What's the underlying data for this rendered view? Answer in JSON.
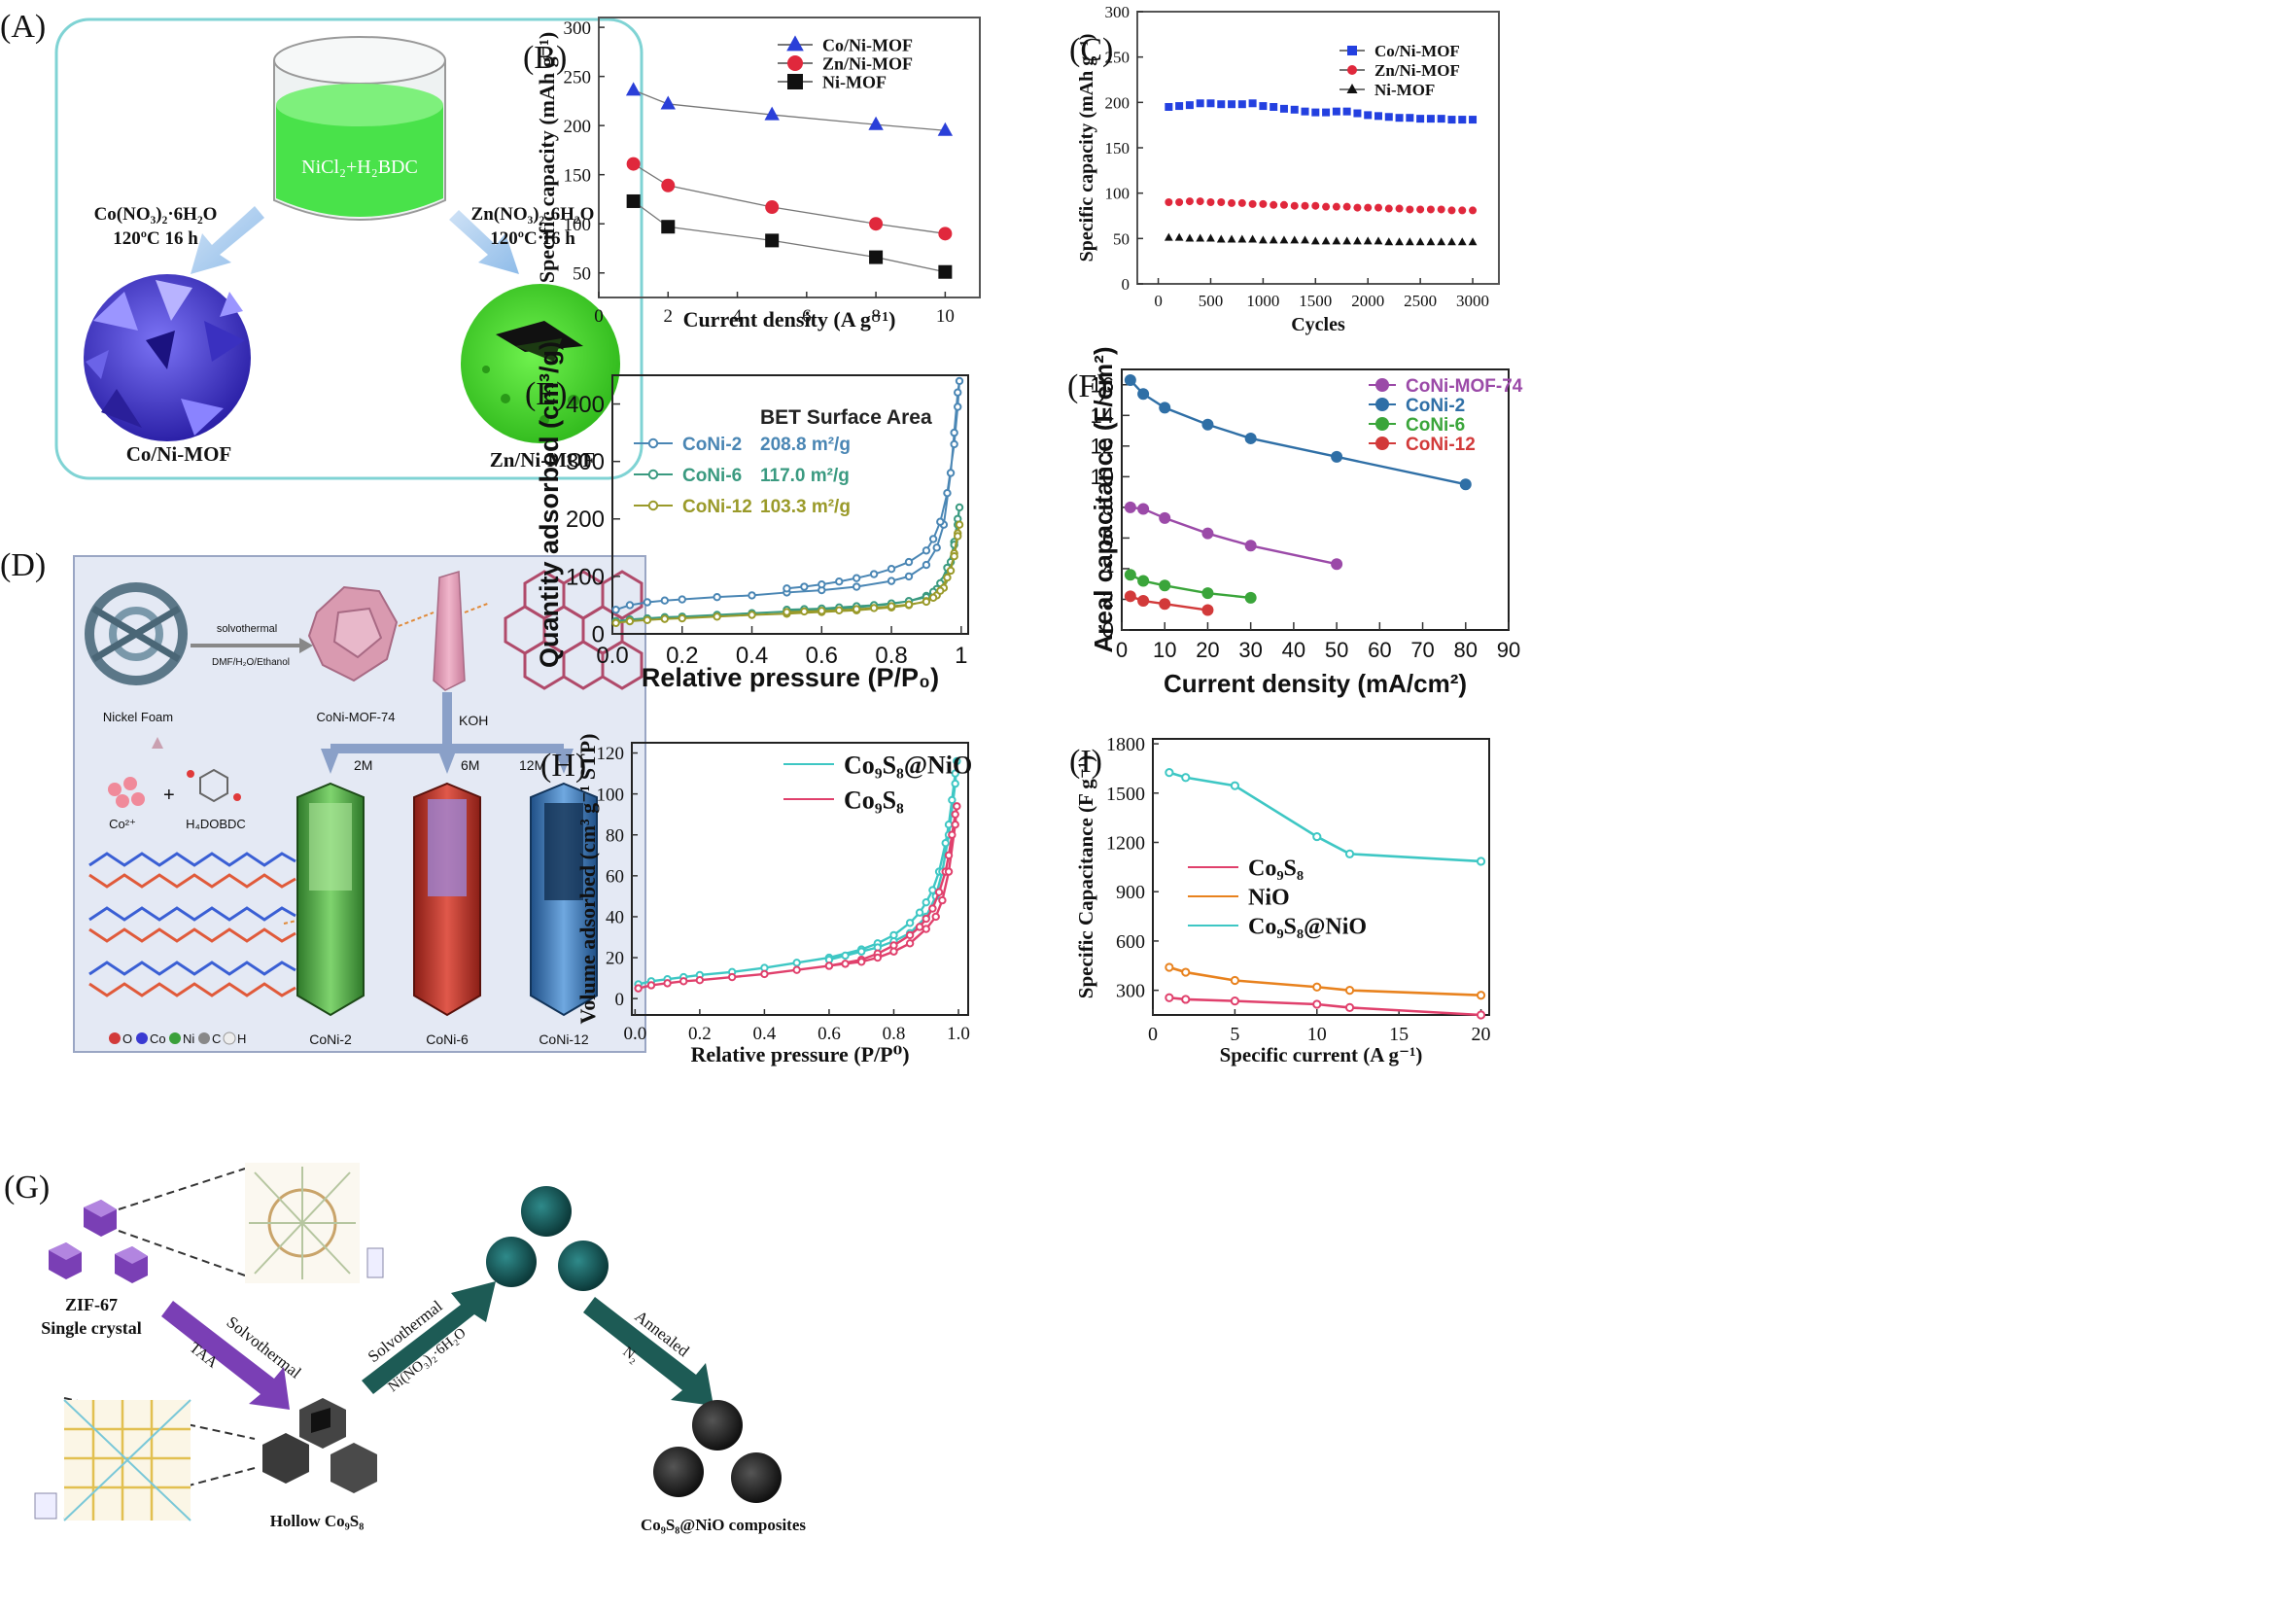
{
  "panels": {
    "A": {
      "label": "(A)",
      "beaker": "NiCl₂+H₂BDC",
      "left_reagent": "Co(NO₃)₂·6H₂O",
      "left_cond": "120ºC 16 h",
      "right_reagent": "Zn(NO₃)₂·6H₂O",
      "right_cond": "120ºC 16 h",
      "left_product": "Co/Ni-MOF",
      "right_product": "Zn/Ni-MOF",
      "colors": {
        "beaker": "#49e24a",
        "left_crystal": "#5f56e8",
        "right_crystal": "#55ef33",
        "frame": "#7fd3d4"
      }
    },
    "D": {
      "label": "(D)",
      "step1": "solvothermal",
      "step1_detail": "DMF/H₂O/Ethanol",
      "nickel_foam": "Nickel Foam",
      "mof": "CoNi-MOF-74",
      "koh": "KOH",
      "conc1": "2M",
      "conc2": "6M",
      "conc3": "12M",
      "co_ion": "Co²⁺",
      "ligand": "H₄DOBDC",
      "products": [
        "CoNi-2",
        "CoNi-6",
        "CoNi-12"
      ],
      "atom_legend": [
        "O",
        "Co",
        "Ni",
        "C",
        "H"
      ],
      "colors": {
        "bg": "#e4e9f4",
        "mof": "#d99ab0",
        "rod1": "#5db84a",
        "rod2": "#d94a3c",
        "rod3": "#4a8fd4"
      }
    },
    "G": {
      "label": "(G)",
      "zif": "ZIF-67",
      "zif_sub": "Single crystal",
      "arrow1": "Solvothermal",
      "arrow1_sub": "TAA",
      "hollow": "Hollow Co₉S₈",
      "arrow2": "Solvothermal",
      "arrow2_sub": "Ni(NO₃)₂·6H₂O",
      "arrow3": "Annealed",
      "arrow3_sub": "N₂",
      "composite": "Co₉S₈@NiO composites",
      "colors": {
        "zif": "#7a3fb5",
        "teal": "#1d6b6b",
        "dark": "#3a3a3a"
      }
    }
  },
  "chart_data": [
    {
      "id": "B",
      "label": "(B)",
      "type": "line",
      "xlabel": "Current density  (A g⁻¹)",
      "ylabel": "Specific capacity (mAh g⁻¹)",
      "xlim": [
        0,
        11
      ],
      "ylim": [
        25,
        310
      ],
      "xticks": [
        0,
        2,
        4,
        6,
        8,
        10
      ],
      "yticks": [
        50,
        100,
        150,
        200,
        250,
        300
      ],
      "series": [
        {
          "name": "Co/Ni-MOF",
          "color": "#2a3fd8",
          "marker": "triangle",
          "x": [
            1,
            2,
            5,
            8,
            10
          ],
          "y": [
            236,
            222,
            211,
            201,
            195
          ]
        },
        {
          "name": "Zn/Ni-MOF",
          "color": "#e0283c",
          "marker": "circle",
          "x": [
            1,
            2,
            5,
            8,
            10
          ],
          "y": [
            161,
            139,
            117,
            100,
            90
          ]
        },
        {
          "name": "Ni-MOF",
          "color": "#111111",
          "marker": "square",
          "x": [
            1,
            2,
            5,
            8,
            10
          ],
          "y": [
            123,
            97,
            83,
            66,
            51
          ]
        }
      ]
    },
    {
      "id": "C",
      "label": "(C)",
      "type": "scatter",
      "xlabel": "Cycles",
      "ylabel": "Specific capacity (mAh g⁻¹)",
      "xlim": [
        -200,
        3250
      ],
      "ylim": [
        0,
        300
      ],
      "xticks": [
        0,
        500,
        1000,
        1500,
        2000,
        2500,
        3000
      ],
      "yticks": [
        0,
        50,
        100,
        150,
        200,
        250,
        300
      ],
      "series": [
        {
          "name": "Co/Ni-MOF",
          "color": "#2340e0",
          "marker": "square",
          "x": [
            100,
            200,
            300,
            400,
            500,
            600,
            700,
            800,
            900,
            1000,
            1100,
            1200,
            1300,
            1400,
            1500,
            1600,
            1700,
            1800,
            1900,
            2000,
            2100,
            2200,
            2300,
            2400,
            2500,
            2600,
            2700,
            2800,
            2900,
            3000
          ],
          "y": [
            195,
            196,
            197,
            199,
            199,
            198,
            198,
            198,
            199,
            196,
            195,
            193,
            192,
            190,
            189,
            189,
            190,
            190,
            188,
            186,
            185,
            184,
            183,
            183,
            182,
            182,
            182,
            181,
            181,
            181
          ]
        },
        {
          "name": "Zn/Ni-MOF",
          "color": "#e0283c",
          "marker": "circle",
          "x": [
            100,
            200,
            300,
            400,
            500,
            600,
            700,
            800,
            900,
            1000,
            1100,
            1200,
            1300,
            1400,
            1500,
            1600,
            1700,
            1800,
            1900,
            2000,
            2100,
            2200,
            2300,
            2400,
            2500,
            2600,
            2700,
            2800,
            2900,
            3000
          ],
          "y": [
            90,
            90,
            91,
            91,
            90,
            90,
            89,
            89,
            88,
            88,
            87,
            87,
            86,
            86,
            86,
            85,
            85,
            85,
            84,
            84,
            84,
            83,
            83,
            82,
            82,
            82,
            82,
            81,
            81,
            81
          ]
        },
        {
          "name": "Ni-MOF",
          "color": "#111111",
          "marker": "triangle",
          "x": [
            100,
            200,
            300,
            400,
            500,
            600,
            700,
            800,
            900,
            1000,
            1100,
            1200,
            1300,
            1400,
            1500,
            1600,
            1700,
            1800,
            1900,
            2000,
            2100,
            2200,
            2300,
            2400,
            2500,
            2600,
            2700,
            2800,
            2900,
            3000
          ],
          "y": [
            51,
            51,
            50,
            50,
            50,
            49,
            49,
            49,
            49,
            48,
            48,
            48,
            48,
            48,
            47,
            47,
            47,
            47,
            47,
            47,
            47,
            46,
            46,
            46,
            46,
            46,
            46,
            46,
            46,
            46
          ]
        }
      ]
    },
    {
      "id": "E",
      "label": "(E)",
      "type": "line",
      "xlabel": "Relative pressure (P/P₀)",
      "ylabel": "Quantity adsorbed (cm³/g)",
      "xlim": [
        0,
        1.02
      ],
      "ylim": [
        0,
        450
      ],
      "xticks": [
        0.0,
        0.2,
        0.4,
        0.6,
        0.8,
        1
      ],
      "yticks": [
        0,
        100,
        200,
        300,
        400
      ],
      "legend_title": "BET Surface Area",
      "series": [
        {
          "name": "CoNi-2",
          "area": "208.8 m²/g",
          "color": "#4a86b4",
          "x": [
            0.01,
            0.05,
            0.1,
            0.15,
            0.2,
            0.3,
            0.4,
            0.5,
            0.6,
            0.7,
            0.8,
            0.85,
            0.9,
            0.93,
            0.95,
            0.97,
            0.98,
            0.99,
            0.995,
            0.99,
            0.98,
            0.96,
            0.94,
            0.92,
            0.9,
            0.85,
            0.8,
            0.75,
            0.7,
            0.65,
            0.6,
            0.55,
            0.5
          ],
          "y": [
            42,
            50,
            55,
            58,
            60,
            64,
            67,
            72,
            76,
            82,
            92,
            100,
            120,
            150,
            190,
            280,
            350,
            420,
            440,
            395,
            330,
            245,
            195,
            165,
            145,
            125,
            113,
            104,
            97,
            91,
            86,
            82,
            79
          ]
        },
        {
          "name": "CoNi-6",
          "area": "117.0 m²/g",
          "color": "#3a9a80",
          "x": [
            0.01,
            0.05,
            0.1,
            0.15,
            0.2,
            0.3,
            0.4,
            0.5,
            0.6,
            0.7,
            0.8,
            0.85,
            0.9,
            0.93,
            0.95,
            0.97,
            0.98,
            0.99,
            0.995,
            0.99,
            0.98,
            0.96,
            0.94,
            0.92,
            0.9,
            0.85,
            0.8,
            0.75,
            0.7,
            0.65,
            0.6,
            0.55,
            0.5
          ],
          "y": [
            22,
            25,
            27,
            29,
            30,
            33,
            36,
            39,
            42,
            46,
            52,
            57,
            66,
            78,
            92,
            125,
            160,
            200,
            220,
            190,
            155,
            115,
            88,
            73,
            64,
            57,
            53,
            50,
            48,
            46,
            44,
            43,
            42
          ]
        },
        {
          "name": "CoNi-12",
          "area": "103.3 m²/g",
          "color": "#9a9a2a",
          "x": [
            0.01,
            0.05,
            0.1,
            0.15,
            0.2,
            0.3,
            0.4,
            0.5,
            0.6,
            0.7,
            0.8,
            0.85,
            0.9,
            0.93,
            0.95,
            0.97,
            0.98,
            0.99,
            0.995,
            0.99,
            0.98,
            0.96,
            0.94,
            0.92,
            0.9,
            0.85,
            0.8,
            0.75,
            0.7,
            0.65,
            0.6,
            0.55,
            0.5
          ],
          "y": [
            19,
            22,
            24,
            26,
            27,
            30,
            33,
            35,
            38,
            41,
            46,
            50,
            57,
            67,
            80,
            110,
            140,
            175,
            190,
            170,
            135,
            98,
            75,
            63,
            56,
            51,
            48,
            45,
            43,
            41,
            40,
            39,
            38
          ]
        }
      ]
    },
    {
      "id": "F",
      "label": "(F)",
      "type": "line",
      "xlabel": "Current density (mA/cm²)",
      "ylabel": "Areal capacitance (F/cm²)",
      "xlim": [
        0,
        90
      ],
      "ylim": [
        0,
        17
      ],
      "xticks": [
        0,
        10,
        20,
        30,
        40,
        50,
        60,
        70,
        80,
        90
      ],
      "yticks": [
        0,
        2,
        4,
        6,
        8,
        10,
        12,
        14,
        16
      ],
      "series": [
        {
          "name": "CoNi-MOF-74",
          "color": "#9b4aa8",
          "x": [
            2,
            5,
            10,
            20,
            30,
            50
          ],
          "y": [
            8.0,
            7.9,
            7.3,
            6.3,
            5.5,
            4.3
          ]
        },
        {
          "name": "CoNi-2",
          "color": "#2f6fa6",
          "x": [
            2,
            5,
            10,
            20,
            30,
            50,
            80
          ],
          "y": [
            16.3,
            15.4,
            14.5,
            13.4,
            12.5,
            11.3,
            9.5
          ]
        },
        {
          "name": "CoNi-6",
          "color": "#3aa53a",
          "x": [
            2,
            5,
            10,
            20,
            30
          ],
          "y": [
            3.6,
            3.2,
            2.9,
            2.4,
            2.1
          ]
        },
        {
          "name": "CoNi-12",
          "color": "#d23a3a",
          "x": [
            2,
            5,
            10,
            20
          ],
          "y": [
            2.2,
            1.9,
            1.7,
            1.3
          ]
        }
      ]
    },
    {
      "id": "H",
      "label": "(H)",
      "type": "line",
      "xlabel": "Relative pressure (P/P⁰)",
      "ylabel": "Volume adsorbed (cm³ g⁻¹ STP)",
      "xlim": [
        -0.01,
        1.03
      ],
      "ylim": [
        -8,
        125
      ],
      "xticks": [
        0.0,
        0.2,
        0.4,
        0.6,
        0.8,
        1.0
      ],
      "yticks": [
        0,
        20,
        40,
        60,
        80,
        100,
        120
      ],
      "series": [
        {
          "name": "Co₉S₈@NiO",
          "color": "#3ec7c4",
          "x": [
            0.01,
            0.05,
            0.1,
            0.15,
            0.2,
            0.3,
            0.4,
            0.5,
            0.6,
            0.7,
            0.75,
            0.8,
            0.85,
            0.88,
            0.9,
            0.92,
            0.94,
            0.96,
            0.97,
            0.98,
            0.99,
            0.995,
            0.99,
            0.97,
            0.95,
            0.93,
            0.9,
            0.85,
            0.8,
            0.75,
            0.7,
            0.65,
            0.6
          ],
          "y": [
            7,
            8.5,
            9.5,
            10.5,
            11.5,
            13,
            15,
            17.5,
            20,
            24,
            27,
            31,
            37,
            42,
            47,
            53,
            62,
            76,
            85,
            97,
            110,
            116,
            105,
            80,
            62,
            50,
            40,
            32,
            28,
            25,
            23,
            21,
            19
          ]
        },
        {
          "name": "Co₉S₈",
          "color": "#e0406c",
          "x": [
            0.01,
            0.05,
            0.1,
            0.15,
            0.2,
            0.3,
            0.4,
            0.5,
            0.6,
            0.7,
            0.75,
            0.8,
            0.85,
            0.88,
            0.9,
            0.92,
            0.94,
            0.96,
            0.97,
            0.98,
            0.99,
            0.995,
            0.99,
            0.97,
            0.95,
            0.93,
            0.9,
            0.85,
            0.8,
            0.75,
            0.7,
            0.65,
            0.6
          ],
          "y": [
            5,
            6.5,
            7.5,
            8.5,
            9,
            10.5,
            12,
            14,
            16,
            19,
            22,
            26,
            31,
            35,
            39,
            44,
            52,
            62,
            70,
            80,
            90,
            94,
            85,
            62,
            48,
            40,
            34,
            27,
            23,
            20,
            18,
            17,
            16
          ]
        }
      ]
    },
    {
      "id": "I",
      "label": "(I)",
      "type": "line",
      "xlabel": "Specific current (A g⁻¹)",
      "ylabel": "Specific Capacitance (F g⁻¹)",
      "xlim": [
        0,
        20.5
      ],
      "ylim": [
        150,
        1830
      ],
      "xticks": [
        0,
        5,
        10,
        15,
        20
      ],
      "yticks": [
        300,
        600,
        900,
        1200,
        1500,
        1800
      ],
      "series": [
        {
          "name": "Co₉S₈",
          "color": "#e0406c",
          "x": [
            1,
            2,
            5,
            10,
            12,
            20
          ],
          "y": [
            255,
            245,
            235,
            215,
            195,
            150
          ]
        },
        {
          "name": "NiO",
          "color": "#e8821e",
          "x": [
            1,
            2,
            5,
            10,
            12,
            20
          ],
          "y": [
            440,
            410,
            360,
            320,
            300,
            270
          ]
        },
        {
          "name": "Co₉S₈@NiO",
          "color": "#3ec7c4",
          "x": [
            1,
            2,
            5,
            10,
            12,
            20
          ],
          "y": [
            1625,
            1595,
            1545,
            1235,
            1130,
            1085
          ]
        }
      ]
    }
  ]
}
